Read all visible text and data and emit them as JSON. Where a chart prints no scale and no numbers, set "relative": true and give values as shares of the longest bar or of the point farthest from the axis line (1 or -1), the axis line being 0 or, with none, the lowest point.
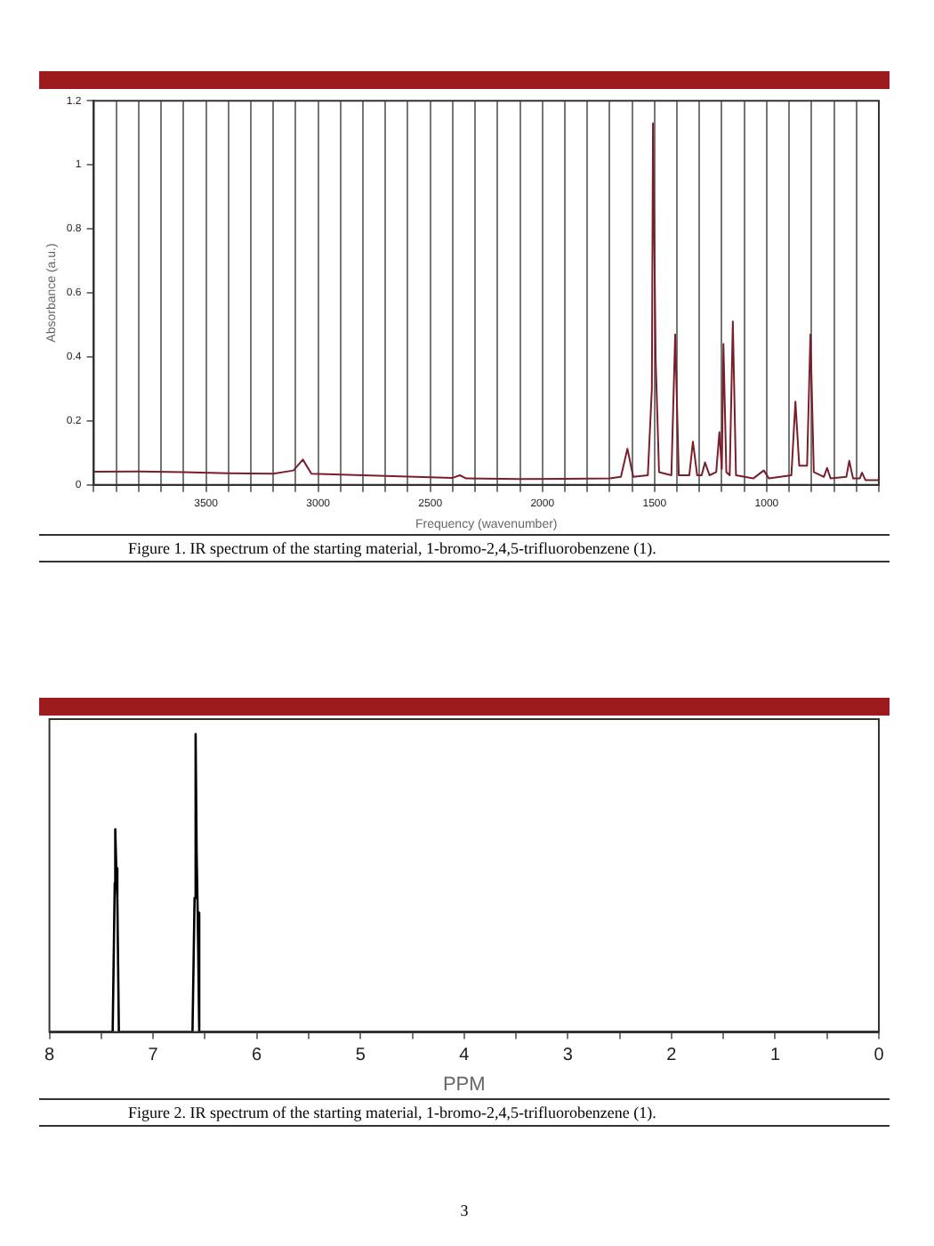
{
  "chart_data": [
    {
      "type": "line",
      "xlabel": "Frequency (wavenumber)",
      "ylabel": "Absorbance (a.u.)",
      "x": [
        4000,
        3800,
        3600,
        3400,
        3200,
        3110,
        3068,
        3030,
        2800,
        2400,
        2368,
        2340,
        2100,
        1900,
        1700,
        1650,
        1621,
        1595,
        1530,
        1512,
        1507,
        1495,
        1480,
        1425,
        1408,
        1392,
        1345,
        1329,
        1310,
        1290,
        1275,
        1255,
        1225,
        1211,
        1200,
        1193,
        1180,
        1165,
        1151,
        1137,
        1060,
        1013,
        990,
        890,
        872,
        855,
        820,
        805,
        790,
        745,
        731,
        715,
        645,
        632,
        615,
        585,
        575,
        560,
        500
      ],
      "values": [
        0.041,
        0.042,
        0.04,
        0.036,
        0.035,
        0.045,
        0.079,
        0.035,
        0.03,
        0.022,
        0.03,
        0.02,
        0.018,
        0.019,
        0.02,
        0.025,
        0.113,
        0.025,
        0.03,
        0.3,
        1.13,
        0.39,
        0.04,
        0.03,
        0.47,
        0.03,
        0.03,
        0.135,
        0.03,
        0.03,
        0.07,
        0.03,
        0.04,
        0.165,
        0.05,
        0.44,
        0.04,
        0.03,
        0.51,
        0.03,
        0.02,
        0.045,
        0.02,
        0.03,
        0.26,
        0.06,
        0.06,
        0.47,
        0.04,
        0.025,
        0.053,
        0.02,
        0.025,
        0.075,
        0.02,
        0.02,
        0.038,
        0.015,
        0.015
      ],
      "color": "#7a1f2a",
      "line_style": "solid",
      "xlim": [
        4000,
        500
      ],
      "xticks": [
        {
          "value": 4000,
          "label": null
        },
        {
          "value": 3900,
          "label": null
        },
        {
          "value": 3800,
          "label": null
        },
        {
          "value": 3700,
          "label": null
        },
        {
          "value": 3600,
          "label": null
        },
        3500,
        {
          "value": 3400,
          "label": null
        },
        {
          "value": 3300,
          "label": null
        },
        {
          "value": 3200,
          "label": null
        },
        {
          "value": 3100,
          "label": null
        },
        3000,
        {
          "value": 2900,
          "label": null
        },
        {
          "value": 2800,
          "label": null
        },
        {
          "value": 2700,
          "label": null
        },
        {
          "value": 2600,
          "label": null
        },
        2500,
        {
          "value": 2400,
          "label": null
        },
        {
          "value": 2300,
          "label": null
        },
        {
          "value": 2200,
          "label": null
        },
        {
          "value": 2100,
          "label": null
        },
        2000,
        {
          "value": 1900,
          "label": null
        },
        {
          "value": 1800,
          "label": null
        },
        {
          "value": 1700,
          "label": null
        },
        {
          "value": 1600,
          "label": null
        },
        1500,
        {
          "value": 1400,
          "label": null
        },
        {
          "value": 1300,
          "label": null
        },
        {
          "value": 1200,
          "label": null
        },
        {
          "value": 1100,
          "label": null
        },
        1000,
        {
          "value": 900,
          "label": null
        },
        {
          "value": 800,
          "label": null
        },
        {
          "value": 700,
          "label": null
        },
        {
          "value": 600,
          "label": null
        },
        {
          "value": 500,
          "label": null
        }
      ],
      "ylim": [
        0,
        1.2
      ],
      "yticks": [
        0,
        0.2,
        0.4,
        0.6,
        0.8,
        1,
        1.2
      ],
      "grid": "x",
      "annotations": [
        "Figure 1.   IR spectrum of the starting material, 1-bromo-2,4,5-trifluorobenzene (1)."
      ]
    },
    {
      "type": "line",
      "xlabel": "PPM",
      "relative": true,
      "x": [
        8,
        7.39,
        7.37,
        7.365,
        7.355,
        7.345,
        7.33,
        6.62,
        6.6,
        6.59,
        6.58,
        6.57,
        6.555,
        0
      ],
      "values": [
        0,
        0,
        0.5,
        0.68,
        0.55,
        0.45,
        0,
        0,
        0.45,
        1,
        0.6,
        0.4,
        0,
        0
      ],
      "color": "#000000",
      "line_style": "solid",
      "xlim": [
        8,
        0
      ],
      "xticks": [
        8,
        {
          "value": 7.5,
          "label": null
        },
        7,
        {
          "value": 6.5,
          "label": null
        },
        6,
        {
          "value": 5.5,
          "label": null
        },
        5,
        {
          "value": 4.5,
          "label": null
        },
        4,
        {
          "value": 3.5,
          "label": null
        },
        3,
        {
          "value": 2.5,
          "label": null
        },
        2,
        {
          "value": 1.5,
          "label": null
        },
        1,
        {
          "value": 0.5,
          "label": null
        },
        0
      ],
      "annotations": [
        "Figure 2.   IR spectrum of the starting material, 1-bromo-2,4,5-trifluorobenzene (1).",
        "3"
      ]
    }
  ]
}
